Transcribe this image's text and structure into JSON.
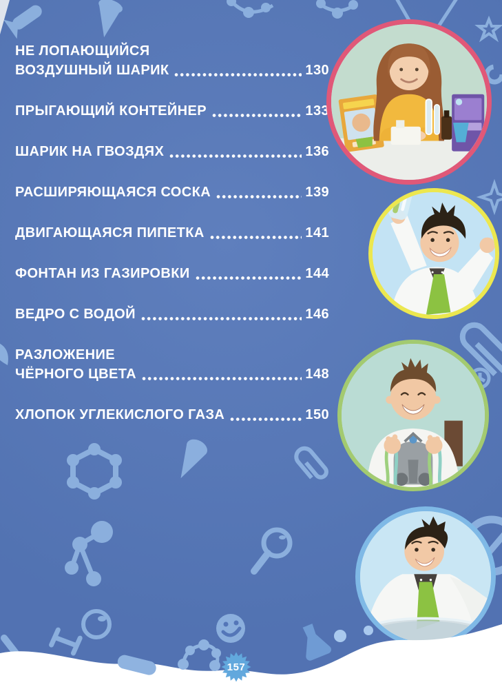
{
  "page": {
    "number_badge": "157"
  },
  "toc": {
    "entries": [
      {
        "lines": [
          "НЕ ЛОПАЮЩИЙСЯ",
          "ВОЗДУШНЫЙ ШАРИК"
        ],
        "page": "130"
      },
      {
        "lines": [
          "ПРЫГАЮЩИЙ КОНТЕЙНЕР"
        ],
        "page": "133"
      },
      {
        "lines": [
          "ШАРИК НА ГВОЗДЯХ"
        ],
        "page": "136"
      },
      {
        "lines": [
          "РАСШИРЯЮЩАЯСЯ СОСКА"
        ],
        "page": "139"
      },
      {
        "lines": [
          "ДВИГАЮЩАЯСЯ ПИПЕТКА"
        ],
        "page": "141"
      },
      {
        "lines": [
          "ФОНТАН ИЗ ГАЗИРОВКИ"
        ],
        "page": "144"
      },
      {
        "lines": [
          "ВЕДРО С ВОДОЙ"
        ],
        "page": "146"
      },
      {
        "lines": [
          "РАЗЛОЖЕНИЕ",
          "ЧЁРНОГО ЦВЕТА"
        ],
        "page": "148"
      },
      {
        "lines": [
          "ХЛОПОК УГЛЕКИСЛОГО ГАЗА"
        ],
        "page": "150"
      }
    ]
  },
  "photos": [
    {
      "alt": "girl with red hair in yellow top at table with science kit boxes and bottles",
      "border_color": "#e05878"
    },
    {
      "alt": "scientist in white lab coat and green tie holding up a bottle",
      "border_color": "#ece74f"
    },
    {
      "alt": "smiling boy in white t-shirt stretching slime between his hands",
      "border_color": "#a3ca70"
    },
    {
      "alt": "scientist in white lab coat and green tie leaning over a glass bowl",
      "border_color": "#7fb9e6"
    }
  ],
  "colors": {
    "bg": "#5577b9",
    "icon": "#8fb3e0",
    "text": "#ffffff",
    "badge": "#62a8dd",
    "p1": "#e05878",
    "p2": "#ece74f",
    "p3": "#a3ca70",
    "p4": "#7fb9e6"
  }
}
